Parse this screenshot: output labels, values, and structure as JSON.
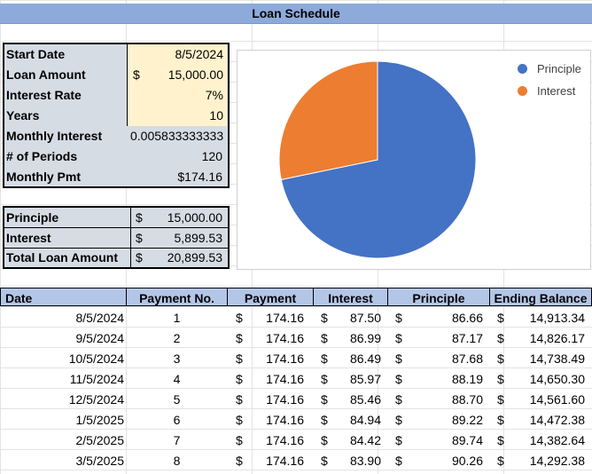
{
  "banner": {
    "title": "Loan Schedule"
  },
  "inputs": {
    "start_date": {
      "label": "Start Date",
      "value": "8/5/2024"
    },
    "loan_amount": {
      "label": "Loan Amount",
      "currency": "$",
      "value": "15,000.00"
    },
    "interest_rate": {
      "label": "Interest Rate",
      "value": "7%"
    },
    "years": {
      "label": "Years",
      "value": "10"
    },
    "monthly_interest": {
      "label": "Monthly  Interest",
      "value": "0.005833333333"
    },
    "periods": {
      "label": "# of Periods",
      "value": "120"
    },
    "monthly_pmt": {
      "label": "Monthly Pmt",
      "value": "$174.16"
    }
  },
  "summary": {
    "principle": {
      "label": "Principle",
      "currency": "$",
      "value": "15,000.00"
    },
    "interest": {
      "label": "Interest",
      "currency": "$",
      "value": "5,899.53"
    },
    "total": {
      "label": "Total Loan Amount",
      "currency": "$",
      "value": "20,899.53"
    }
  },
  "chart_data": {
    "type": "pie",
    "categories": [
      "Principle",
      "Interest"
    ],
    "values": [
      15000.0,
      5899.53
    ],
    "colors": [
      "#4472c4",
      "#ed7d31"
    ],
    "legend_position": "top-right"
  },
  "schedule": {
    "headers": [
      "Date",
      "Payment No.",
      "Payment",
      "Interest",
      "Principle",
      "Ending Balance"
    ],
    "currency": "$",
    "rows": [
      {
        "date": "8/5/2024",
        "no": "1",
        "payment": "174.16",
        "interest": "87.50",
        "principle": "86.66",
        "balance": "14,913.34"
      },
      {
        "date": "9/5/2024",
        "no": "2",
        "payment": "174.16",
        "interest": "86.99",
        "principle": "87.17",
        "balance": "14,826.17"
      },
      {
        "date": "10/5/2024",
        "no": "3",
        "payment": "174.16",
        "interest": "86.49",
        "principle": "87.68",
        "balance": "14,738.49"
      },
      {
        "date": "11/5/2024",
        "no": "4",
        "payment": "174.16",
        "interest": "85.97",
        "principle": "88.19",
        "balance": "14,650.30"
      },
      {
        "date": "12/5/2024",
        "no": "5",
        "payment": "174.16",
        "interest": "85.46",
        "principle": "88.70",
        "balance": "14,561.60"
      },
      {
        "date": "1/5/2025",
        "no": "6",
        "payment": "174.16",
        "interest": "84.94",
        "principle": "89.22",
        "balance": "14,472.38"
      },
      {
        "date": "2/5/2025",
        "no": "7",
        "payment": "174.16",
        "interest": "84.42",
        "principle": "89.74",
        "balance": "14,382.64"
      },
      {
        "date": "3/5/2025",
        "no": "8",
        "payment": "174.16",
        "interest": "83.90",
        "principle": "90.26",
        "balance": "14,292.38"
      }
    ]
  }
}
